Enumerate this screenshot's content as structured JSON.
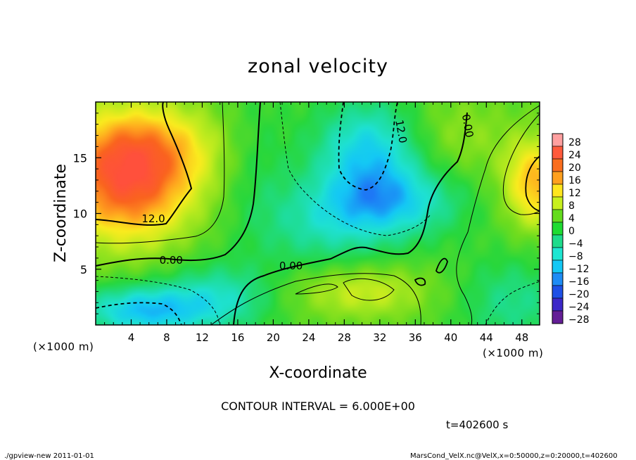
{
  "chart_data": {
    "type": "heatmap",
    "title": "zonal velocity",
    "xlabel": "X-coordinate",
    "ylabel": "Z-coordinate",
    "x_unit_label": "(×1000 m)",
    "y_unit_label": "(×1000 m)",
    "xlim": [
      0,
      50
    ],
    "ylim": [
      0,
      20
    ],
    "x_ticks": [
      4,
      8,
      12,
      16,
      20,
      24,
      28,
      32,
      36,
      40,
      44,
      48
    ],
    "y_ticks": [
      5,
      10,
      15
    ],
    "contour_interval_text": "CONTOUR INTERVAL = 6.000E+00",
    "contour_labels": [
      {
        "text": "12.0",
        "x": 6.5,
        "z": 9.2
      },
      {
        "text": "0.00",
        "x": 8.5,
        "z": 5.5
      },
      {
        "text": "0.00",
        "x": 22.0,
        "z": 5.0
      },
      {
        "text": "12.0",
        "x": 34.0,
        "z": 17.3
      },
      {
        "text": "0.00",
        "x": 41.5,
        "z": 17.8
      }
    ],
    "colorbar": {
      "levels": [
        28,
        24,
        20,
        16,
        12,
        8,
        4,
        0,
        -4,
        -8,
        -12,
        -16,
        -20,
        -24,
        -28
      ],
      "labels": [
        "28",
        "24",
        "20",
        "16",
        "12",
        "8",
        "4",
        "0",
        "−4",
        "−8",
        "−12",
        "−16",
        "−20",
        "−24",
        "−28"
      ]
    },
    "field_features": [
      {
        "x": 3.5,
        "z": 12.7,
        "value": 20
      },
      {
        "x": 31,
        "z": 15,
        "value": -11
      },
      {
        "x": 34,
        "z": 11.5,
        "value": -9
      },
      {
        "x": 6,
        "z": 1.3,
        "value": -13
      },
      {
        "x": 49,
        "z": 12.5,
        "value": 16
      },
      {
        "x": 30,
        "z": 2.5,
        "value": 9
      }
    ],
    "grid": false
  },
  "footer": {
    "time": "t=402600 s",
    "left_note": "./gpview-new   2011-01-01",
    "right_note": "MarsCond_VelX.nc@VelX,x=0:50000,z=0:20000,t=402600"
  }
}
